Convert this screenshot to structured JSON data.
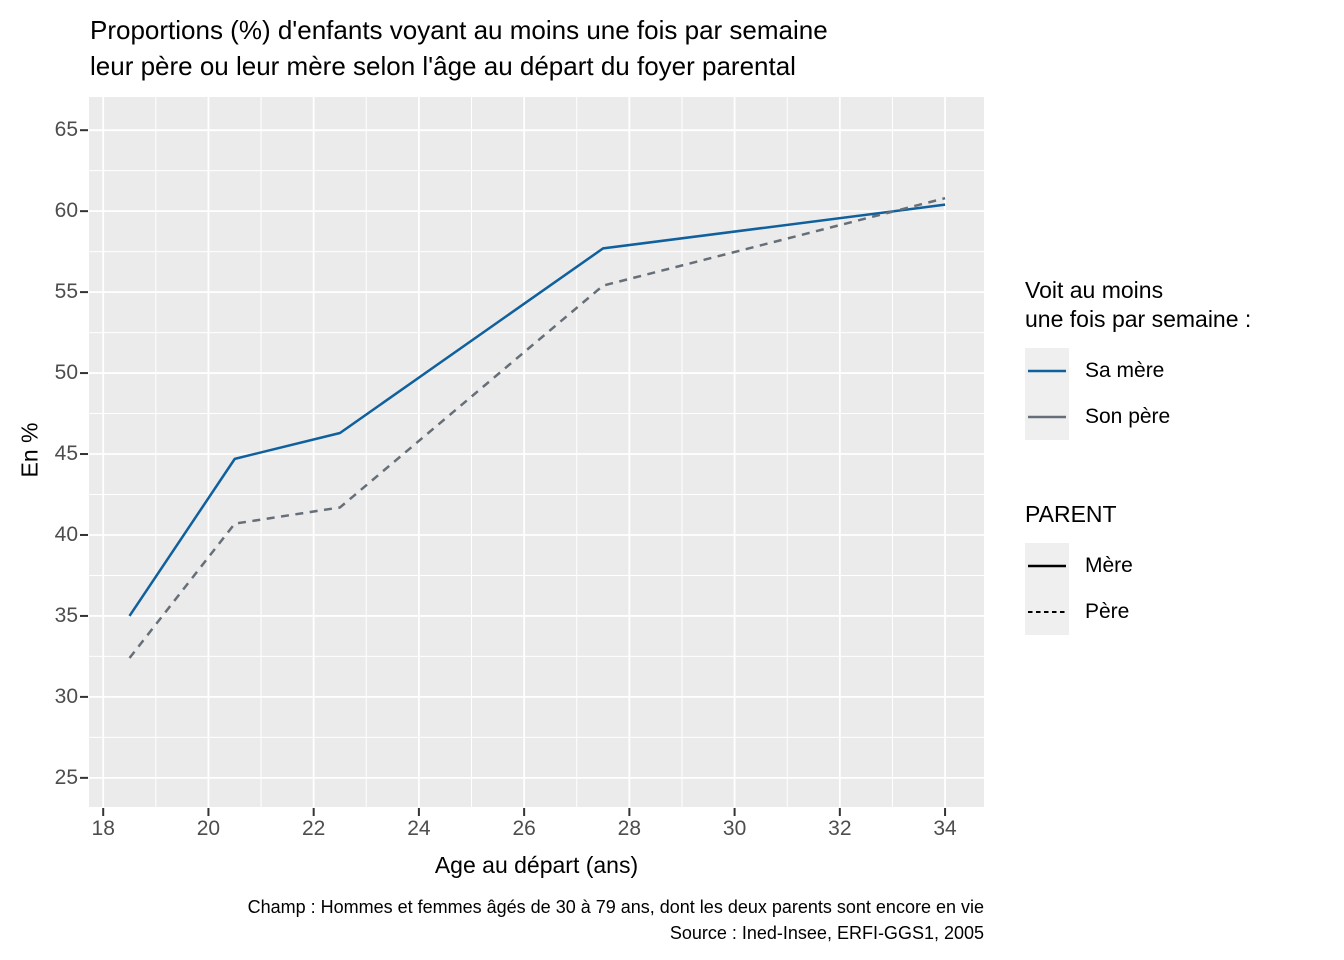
{
  "figure": {
    "title_lines": [
      "Proportions (%) d'enfants voyant au moins une fois par semaine",
      "leur père ou leur mère selon l'âge au départ du foyer parental"
    ],
    "caption_lines": [
      "Champ : Hommes et femmes âgés de 30 à 79 ans, dont les deux parents sont encore en vie",
      "Source : Ined-Insee, ERFI-GGS1, 2005"
    ]
  },
  "chart_data": {
    "type": "line",
    "title": "Proportions (%) d'enfants voyant au moins une fois par semaine leur père ou leur mère selon l'âge au départ du foyer parental",
    "xlabel": "Age au départ (ans)",
    "ylabel": "En %",
    "x_ticks": [
      18,
      20,
      22,
      24,
      26,
      28,
      30,
      32,
      34
    ],
    "y_ticks": [
      25,
      30,
      35,
      40,
      45,
      50,
      55,
      60,
      65
    ],
    "xlim": [
      17.73,
      34.74
    ],
    "ylim": [
      23.2,
      67.05
    ],
    "grid": "white major and minor gridlines on grey panel",
    "panel_bg": "#ebebeb",
    "grid_color": "#ffffff",
    "tick_color": "#333333",
    "series": [
      {
        "name": "Sa mère",
        "parent": "Mère",
        "color": "#0f609d",
        "linetype": "solid",
        "x": [
          18.5,
          20.5,
          22.5,
          27.5,
          34
        ],
        "y": [
          35.0,
          44.7,
          46.3,
          57.7,
          60.4
        ]
      },
      {
        "name": "Son père",
        "parent": "Père",
        "color": "#666f78",
        "linetype": "dashed",
        "x": [
          18.5,
          20.5,
          22.5,
          27.5,
          34
        ],
        "y": [
          32.4,
          40.7,
          41.7,
          55.4,
          60.8
        ]
      }
    ],
    "legend_position": "right"
  },
  "legend_color": {
    "title_lines": [
      "Voit au moins",
      "une fois par semaine :"
    ],
    "items": [
      {
        "label": "Sa mère",
        "color": "#0f609d"
      },
      {
        "label": "Son père",
        "color": "#666f78"
      }
    ]
  },
  "legend_linetype": {
    "title": "PARENT",
    "items": [
      {
        "label": "Mère",
        "color": "#000000",
        "linetype": "solid"
      },
      {
        "label": "Père",
        "color": "#000000",
        "linetype": "dashed"
      }
    ]
  }
}
